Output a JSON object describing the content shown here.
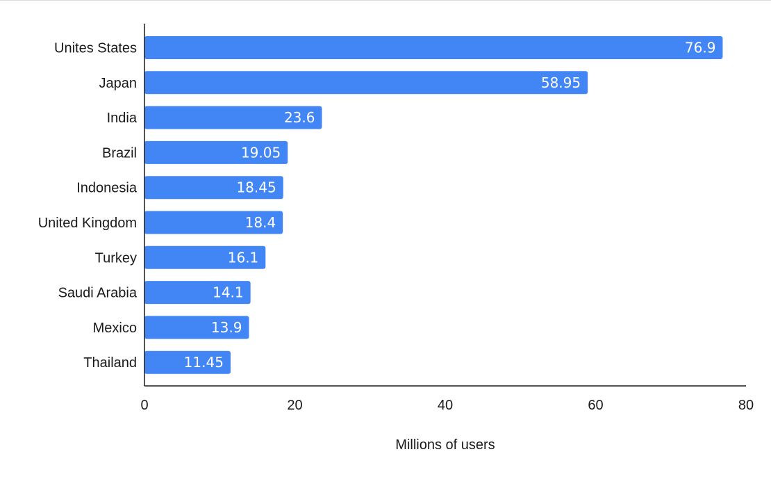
{
  "chart_data": {
    "type": "bar",
    "orientation": "horizontal",
    "categories": [
      "Unites States",
      "Japan",
      "India",
      "Brazil",
      "Indonesia",
      "United Kingdom",
      "Turkey",
      "Saudi Arabia",
      "Mexico",
      "Thailand"
    ],
    "values": [
      76.9,
      58.95,
      23.6,
      19.05,
      18.45,
      18.4,
      16.1,
      14.1,
      13.9,
      11.45
    ],
    "value_labels": [
      "76.9",
      "58.95",
      "23.6",
      "19.05",
      "18.45",
      "18.4",
      "16.1",
      "14.1",
      "13.9",
      "11.45"
    ],
    "title": "",
    "xlabel": "Millions of users",
    "ylabel": "",
    "xlim": [
      0,
      80
    ],
    "xticks": [
      0,
      20,
      40,
      60,
      80
    ],
    "grid": false,
    "legend": "none",
    "bar_color": "#4285f4"
  }
}
